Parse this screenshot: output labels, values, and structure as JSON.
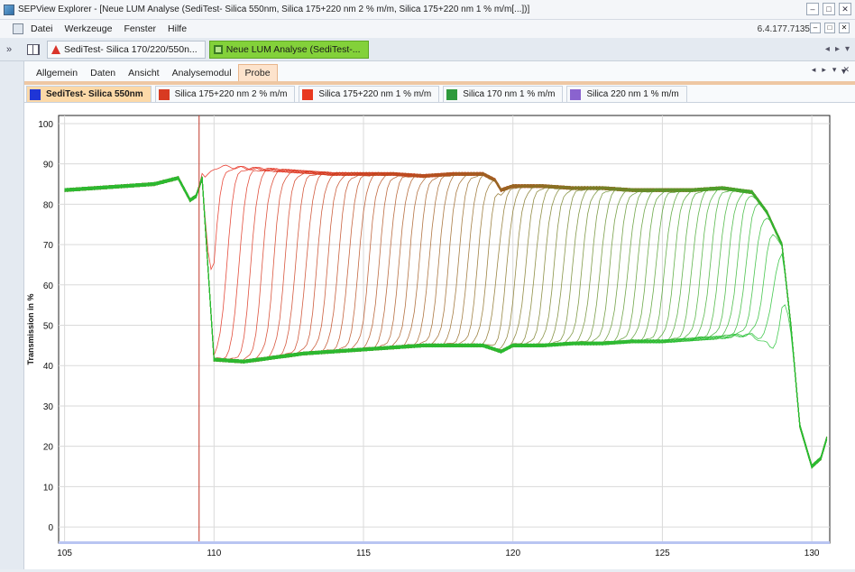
{
  "window": {
    "title": "SEPView Explorer - [Neue LUM Analyse (SediTest- Silica 550nm, Silica 175+220 nm 2 % m/m, Silica 175+220 nm 1 % m/m[...])]",
    "version": "6.4.177.7135",
    "minimize": "–",
    "maximize": "□",
    "close": "✕"
  },
  "menu": {
    "items": [
      "Datei",
      "Werkzeuge",
      "Fenster",
      "Hilfe"
    ]
  },
  "docs": {
    "tabs": [
      {
        "label": "SediTest- Silica 170/220/550n...",
        "icon_color": "#d9342b"
      },
      {
        "label": "Neue LUM Analyse (SediTest-...",
        "icon_color": "#3a7a24"
      }
    ],
    "collapse_glyph": "»"
  },
  "ribbon": {
    "tabs": [
      "Allgemein",
      "Daten",
      "Ansicht",
      "Analysemodul",
      "Probe"
    ],
    "active": "Probe"
  },
  "series_tabs": [
    {
      "label": "SediTest- Silica 550nm",
      "color": "#1f35d6"
    },
    {
      "label": "Silica 175+220 nm 2 % m/m",
      "color": "#d83a22"
    },
    {
      "label": "Silica 175+220 nm 1 % m/m",
      "color": "#e8381f"
    },
    {
      "label": "Silica 170 nm 1 % m/m",
      "color": "#2e9a3c"
    },
    {
      "label": "Silica 220 nm 1 % m/m",
      "color": "#8a63cf"
    }
  ],
  "chart_data": {
    "type": "line",
    "ylabel": "Transmission in %",
    "xlabel": "",
    "xlim": [
      104.8,
      130.6
    ],
    "ylim": [
      -4,
      102
    ],
    "xticks": [
      105,
      110,
      115,
      120,
      125,
      130
    ],
    "yticks": [
      0,
      10,
      20,
      30,
      40,
      50,
      60,
      70,
      80,
      90,
      100
    ],
    "grid": true,
    "meniscus_marker_x": 109.5,
    "profile_count": 60,
    "start_color": "#e8281a",
    "end_color": "#22c232",
    "initial_profile": {
      "x": [
        105,
        106,
        107,
        108,
        108.8,
        109.2,
        109.4,
        109.6,
        110,
        111,
        112,
        113,
        114,
        115,
        116,
        117,
        118,
        119,
        119.4,
        119.6,
        120,
        121,
        122,
        123,
        124,
        125,
        126,
        127,
        127.5,
        128,
        128.5,
        129,
        129.3,
        129.6,
        130,
        130.3,
        130.5
      ],
      "y": [
        83.5,
        84,
        84.5,
        85,
        86.5,
        81,
        82,
        88.5,
        89.5,
        89,
        88.5,
        88,
        87.5,
        87.5,
        87.5,
        87,
        87.5,
        87.5,
        86,
        83.5,
        84.5,
        84.5,
        84,
        84,
        83.5,
        83.5,
        83.5,
        84,
        83.5,
        83,
        78,
        70,
        50,
        25,
        15,
        17,
        22
      ]
    },
    "final_profile": {
      "x": [
        105,
        106,
        107,
        108,
        108.8,
        109.2,
        109.4,
        109.6,
        110,
        111,
        112,
        113,
        114,
        115,
        116,
        117,
        118,
        119,
        119.4,
        119.6,
        120,
        121,
        122,
        123,
        124,
        125,
        126,
        127,
        127.5,
        128,
        128.5,
        129,
        129.3,
        129.6,
        130,
        130.3,
        130.5
      ],
      "y": [
        83.5,
        84,
        84.5,
        85,
        86.5,
        81,
        82,
        86.5,
        41.5,
        41,
        42,
        43,
        43.5,
        44,
        44.5,
        45,
        45,
        45,
        44,
        43.5,
        45,
        45,
        45.5,
        45.5,
        46,
        46,
        46.5,
        47,
        47.5,
        47.5,
        45,
        38,
        30,
        20,
        15,
        16,
        21
      ]
    }
  }
}
